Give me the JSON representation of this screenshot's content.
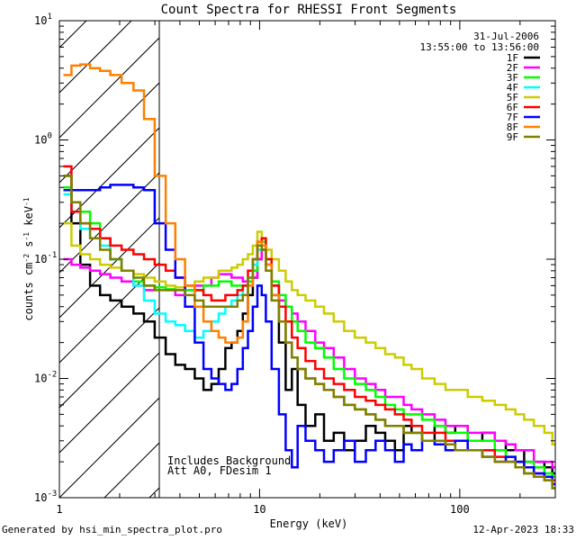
{
  "chart_data": {
    "type": "line",
    "title": "Count Spectra for RHESSI Front Segments",
    "xlabel": "Energy (keV)",
    "ylabel": "counts cm^-2 s^-1 keV^-1",
    "xscale": "log",
    "yscale": "log",
    "xlim": [
      1,
      300
    ],
    "ylim": [
      0.001,
      10
    ],
    "x_ticks": [
      {
        "value": 1,
        "label": "1"
      },
      {
        "value": 10,
        "label": "10"
      },
      {
        "value": 100,
        "label": "100"
      }
    ],
    "y_ticks": [
      {
        "value": 0.001,
        "base": "10",
        "exp": "-3"
      },
      {
        "value": 0.01,
        "base": "10",
        "exp": "-2"
      },
      {
        "value": 0.1,
        "base": "10",
        "exp": "-1"
      },
      {
        "value": 1,
        "base": "10",
        "exp": "0"
      },
      {
        "value": 10,
        "base": "10",
        "exp": "1"
      }
    ],
    "grid": false,
    "hatched_region": {
      "x": [
        1,
        3
      ]
    },
    "date": "31-Jul-2006",
    "time_range": "13:55:00 to 13:56:00",
    "annotations": [
      "Includes Background",
      "Att A0, FDesim 1"
    ],
    "legend_position": "top-right",
    "series": [
      {
        "name": "1F",
        "color": "#000000",
        "x": [
          1.1,
          1.2,
          1.35,
          1.5,
          1.7,
          1.9,
          2.2,
          2.5,
          2.8,
          3.2,
          3.6,
          4.0,
          4.5,
          5.0,
          5.5,
          6.0,
          6.5,
          7.0,
          7.5,
          8.0,
          8.5,
          9.0,
          9.5,
          10.0,
          10.5,
          11.0,
          12,
          13,
          14,
          15,
          16,
          18,
          20,
          22,
          25,
          28,
          32,
          36,
          40,
          45,
          50,
          55,
          60,
          70,
          80,
          90,
          100,
          120,
          140,
          160,
          180,
          200,
          220,
          250,
          280,
          300
        ],
        "y": [
          0.5,
          0.2,
          0.09,
          0.06,
          0.05,
          0.045,
          0.04,
          0.035,
          0.03,
          0.022,
          0.016,
          0.013,
          0.012,
          0.01,
          0.008,
          0.009,
          0.012,
          0.018,
          0.02,
          0.025,
          0.035,
          0.05,
          0.07,
          0.1,
          0.12,
          0.09,
          0.05,
          0.02,
          0.008,
          0.012,
          0.006,
          0.004,
          0.005,
          0.003,
          0.0035,
          0.0025,
          0.003,
          0.004,
          0.0035,
          0.003,
          0.0025,
          0.004,
          0.0035,
          0.003,
          0.004,
          0.0035,
          0.004,
          0.003,
          0.0035,
          0.003,
          0.0025,
          0.0025,
          0.002,
          0.002,
          0.0018,
          0.0016
        ]
      },
      {
        "name": "2F",
        "color": "#ff00ff",
        "x": [
          1.1,
          1.2,
          1.35,
          1.5,
          1.7,
          1.9,
          2.2,
          2.5,
          2.8,
          3.2,
          3.6,
          4.0,
          4.5,
          5.0,
          5.5,
          6.0,
          6.5,
          7.0,
          7.5,
          8.0,
          8.5,
          9.0,
          9.5,
          10.0,
          10.5,
          11.0,
          12,
          13,
          14,
          15,
          16,
          18,
          20,
          22,
          25,
          28,
          32,
          36,
          40,
          45,
          50,
          55,
          60,
          70,
          80,
          90,
          100,
          120,
          140,
          160,
          180,
          200,
          220,
          250,
          280,
          300
        ],
        "y": [
          0.1,
          0.09,
          0.085,
          0.08,
          0.075,
          0.07,
          0.065,
          0.06,
          0.055,
          0.058,
          0.055,
          0.05,
          0.055,
          0.06,
          0.06,
          0.07,
          0.075,
          0.075,
          0.07,
          0.07,
          0.065,
          0.065,
          0.07,
          0.1,
          0.12,
          0.09,
          0.06,
          0.045,
          0.04,
          0.035,
          0.03,
          0.025,
          0.02,
          0.018,
          0.015,
          0.012,
          0.01,
          0.009,
          0.008,
          0.007,
          0.007,
          0.006,
          0.0055,
          0.005,
          0.0045,
          0.004,
          0.004,
          0.0035,
          0.0035,
          0.003,
          0.0028,
          0.0025,
          0.0025,
          0.002,
          0.002,
          0.0018
        ]
      },
      {
        "name": "3F",
        "color": "#00ff00",
        "x": [
          1.1,
          1.2,
          1.35,
          1.5,
          1.7,
          1.9,
          2.2,
          2.5,
          2.8,
          3.2,
          3.6,
          4.0,
          4.5,
          5.0,
          5.5,
          6.0,
          6.5,
          7.0,
          7.5,
          8.0,
          8.5,
          9.0,
          9.5,
          10.0,
          10.5,
          11.0,
          12,
          13,
          14,
          15,
          16,
          18,
          20,
          22,
          25,
          28,
          32,
          36,
          40,
          45,
          50,
          55,
          60,
          70,
          80,
          90,
          100,
          120,
          140,
          160,
          180,
          200,
          220,
          250,
          280,
          300
        ],
        "y": [
          0.4,
          0.3,
          0.25,
          0.2,
          0.15,
          0.1,
          0.08,
          0.065,
          0.06,
          0.058,
          0.056,
          0.055,
          0.055,
          0.055,
          0.06,
          0.06,
          0.065,
          0.065,
          0.06,
          0.06,
          0.06,
          0.065,
          0.08,
          0.12,
          0.14,
          0.1,
          0.065,
          0.05,
          0.04,
          0.03,
          0.025,
          0.02,
          0.018,
          0.015,
          0.012,
          0.01,
          0.009,
          0.008,
          0.007,
          0.006,
          0.0055,
          0.005,
          0.005,
          0.0045,
          0.004,
          0.0035,
          0.0035,
          0.003,
          0.003,
          0.0025,
          0.0022,
          0.002,
          0.002,
          0.0018,
          0.0016,
          0.0015
        ]
      },
      {
        "name": "4F",
        "color": "#00ffff",
        "x": [
          1.1,
          1.2,
          1.35,
          1.5,
          1.7,
          1.9,
          2.2,
          2.5,
          2.8,
          3.2,
          3.6,
          4.0,
          4.5,
          5.0,
          5.5,
          6.0,
          6.5,
          7.0,
          7.5,
          8.0,
          8.5,
          9.0,
          9.5,
          10.0,
          10.5,
          11.0,
          12,
          13,
          14,
          15,
          16,
          18,
          20,
          22,
          25,
          28,
          32,
          36,
          40,
          45,
          50,
          55,
          60,
          70,
          80,
          90,
          100,
          120,
          140,
          160,
          180,
          200,
          220,
          250,
          280,
          300
        ],
        "y": [
          0.35,
          0.25,
          0.18,
          0.15,
          0.13,
          0.1,
          0.08,
          0.06,
          0.045,
          0.035,
          0.03,
          0.028,
          0.025,
          0.022,
          0.025,
          0.03,
          0.035,
          0.04,
          0.045,
          0.05,
          0.06,
          0.07,
          0.09,
          0.12,
          0.13,
          0.09,
          0.05,
          0.03,
          0.02,
          0.015,
          0.012,
          0.01,
          0.009,
          0.008,
          0.007,
          0.006,
          0.0055,
          0.005,
          0.0045,
          0.004,
          0.004,
          0.0035,
          0.0035,
          0.003,
          0.003,
          0.0028,
          0.0025,
          0.0025,
          0.0022,
          0.002,
          0.002,
          0.0018,
          0.0016,
          0.0015,
          0.0014,
          0.0013
        ]
      },
      {
        "name": "5F",
        "color": "#cccc00",
        "x": [
          1.1,
          1.2,
          1.35,
          1.5,
          1.7,
          1.9,
          2.2,
          2.5,
          2.8,
          3.2,
          3.6,
          4.0,
          4.5,
          5.0,
          5.5,
          6.0,
          6.5,
          7.0,
          7.5,
          8.0,
          8.5,
          9.0,
          9.5,
          10.0,
          10.5,
          11.0,
          12,
          13,
          14,
          15,
          16,
          18,
          20,
          22,
          25,
          28,
          32,
          36,
          40,
          45,
          50,
          55,
          60,
          70,
          80,
          90,
          100,
          120,
          140,
          160,
          180,
          200,
          220,
          250,
          280,
          300
        ],
        "y": [
          0.2,
          0.13,
          0.11,
          0.1,
          0.09,
          0.085,
          0.08,
          0.075,
          0.07,
          0.065,
          0.06,
          0.058,
          0.06,
          0.065,
          0.07,
          0.07,
          0.08,
          0.08,
          0.085,
          0.09,
          0.1,
          0.11,
          0.13,
          0.17,
          0.15,
          0.12,
          0.1,
          0.08,
          0.065,
          0.055,
          0.05,
          0.045,
          0.04,
          0.035,
          0.03,
          0.025,
          0.022,
          0.02,
          0.018,
          0.016,
          0.015,
          0.013,
          0.012,
          0.01,
          0.009,
          0.008,
          0.008,
          0.007,
          0.0065,
          0.006,
          0.0055,
          0.005,
          0.0045,
          0.004,
          0.0035,
          0.0028
        ]
      },
      {
        "name": "6F",
        "color": "#ff0000",
        "x": [
          1.1,
          1.2,
          1.35,
          1.5,
          1.7,
          1.9,
          2.2,
          2.5,
          2.8,
          3.2,
          3.6,
          4.0,
          4.5,
          5.0,
          5.5,
          6.0,
          6.5,
          7.0,
          7.5,
          8.0,
          8.5,
          9.0,
          9.5,
          10.0,
          10.5,
          11.0,
          12,
          13,
          14,
          15,
          16,
          18,
          20,
          22,
          25,
          28,
          32,
          36,
          40,
          45,
          50,
          55,
          60,
          70,
          80,
          90,
          100,
          120,
          140,
          160,
          180,
          200,
          220,
          250,
          280,
          300
        ],
        "y": [
          0.6,
          0.25,
          0.2,
          0.18,
          0.15,
          0.13,
          0.12,
          0.11,
          0.1,
          0.09,
          0.08,
          0.07,
          0.06,
          0.055,
          0.05,
          0.045,
          0.045,
          0.05,
          0.05,
          0.055,
          0.06,
          0.08,
          0.1,
          0.14,
          0.15,
          0.1,
          0.06,
          0.04,
          0.03,
          0.022,
          0.018,
          0.014,
          0.012,
          0.01,
          0.009,
          0.008,
          0.007,
          0.0065,
          0.006,
          0.0055,
          0.005,
          0.0045,
          0.004,
          0.0035,
          0.0035,
          0.003,
          0.003,
          0.0025,
          0.0025,
          0.0022,
          0.002,
          0.002,
          0.0018,
          0.0016,
          0.0015,
          0.0014
        ]
      },
      {
        "name": "7F",
        "color": "#0000ff",
        "x": [
          1.1,
          1.2,
          1.35,
          1.5,
          1.7,
          1.9,
          2.2,
          2.5,
          2.8,
          3.2,
          3.6,
          4.0,
          4.5,
          5.0,
          5.5,
          6.0,
          6.5,
          7.0,
          7.5,
          8.0,
          8.5,
          9.0,
          9.5,
          10.0,
          10.5,
          11.0,
          12,
          13,
          14,
          15,
          16,
          18,
          20,
          22,
          25,
          28,
          32,
          36,
          40,
          45,
          50,
          55,
          60,
          70,
          80,
          90,
          100,
          120,
          140,
          160,
          180,
          200,
          220,
          250,
          280,
          300
        ],
        "y": [
          0.38,
          0.38,
          0.38,
          0.38,
          0.4,
          0.42,
          0.42,
          0.4,
          0.38,
          0.2,
          0.12,
          0.07,
          0.04,
          0.02,
          0.012,
          0.01,
          0.009,
          0.008,
          0.009,
          0.012,
          0.018,
          0.025,
          0.04,
          0.06,
          0.05,
          0.03,
          0.012,
          0.005,
          0.0025,
          0.0018,
          0.004,
          0.003,
          0.0025,
          0.002,
          0.0025,
          0.003,
          0.002,
          0.0025,
          0.003,
          0.0025,
          0.002,
          0.0028,
          0.0025,
          0.003,
          0.0028,
          0.0025,
          0.003,
          0.0025,
          0.0022,
          0.002,
          0.0022,
          0.002,
          0.0018,
          0.0016,
          0.0015,
          0.0013
        ]
      },
      {
        "name": "8F",
        "color": "#ff8000",
        "x": [
          1.1,
          1.2,
          1.35,
          1.5,
          1.7,
          1.9,
          2.2,
          2.5,
          2.8,
          3.2,
          3.6,
          4.0,
          4.5,
          5.0,
          5.5,
          6.0,
          6.5,
          7.0,
          7.5,
          8.0,
          8.5,
          9.0,
          9.5,
          10.0,
          10.5,
          11.0,
          12,
          13,
          14,
          15,
          16,
          18,
          20,
          22,
          25,
          28,
          32,
          36,
          40,
          45,
          50,
          55,
          60,
          70,
          80,
          90,
          100,
          120,
          140,
          160,
          180,
          200,
          220,
          250,
          280,
          300
        ],
        "y": [
          3.5,
          4.2,
          4.3,
          4.0,
          3.8,
          3.5,
          3.0,
          2.6,
          1.5,
          0.5,
          0.2,
          0.1,
          0.06,
          0.04,
          0.03,
          0.025,
          0.022,
          0.02,
          0.02,
          0.022,
          0.03,
          0.06,
          0.1,
          0.14,
          0.13,
          0.09,
          0.05,
          0.03,
          0.02,
          0.015,
          0.012,
          0.01,
          0.009,
          0.008,
          0.007,
          0.006,
          0.0055,
          0.005,
          0.0045,
          0.004,
          0.004,
          0.0035,
          0.0035,
          0.003,
          0.003,
          0.0028,
          0.0025,
          0.0025,
          0.0022,
          0.002,
          0.002,
          0.0018,
          0.0016,
          0.0015,
          0.0014,
          0.0012
        ]
      },
      {
        "name": "9F",
        "color": "#808000",
        "x": [
          1.1,
          1.2,
          1.35,
          1.5,
          1.7,
          1.9,
          2.2,
          2.5,
          2.8,
          3.2,
          3.6,
          4.0,
          4.5,
          5.0,
          5.5,
          6.0,
          6.5,
          7.0,
          7.5,
          8.0,
          8.5,
          9.0,
          9.5,
          10.0,
          10.5,
          11.0,
          12,
          13,
          14,
          15,
          16,
          18,
          20,
          22,
          25,
          28,
          32,
          36,
          40,
          45,
          50,
          55,
          60,
          70,
          80,
          90,
          100,
          120,
          140,
          160,
          180,
          200,
          220,
          250,
          280,
          300
        ],
        "y": [
          0.5,
          0.3,
          0.2,
          0.15,
          0.12,
          0.1,
          0.08,
          0.07,
          0.06,
          0.055,
          0.055,
          0.055,
          0.05,
          0.045,
          0.04,
          0.04,
          0.04,
          0.04,
          0.04,
          0.045,
          0.05,
          0.07,
          0.1,
          0.13,
          0.12,
          0.08,
          0.045,
          0.03,
          0.02,
          0.015,
          0.012,
          0.01,
          0.009,
          0.008,
          0.007,
          0.006,
          0.0055,
          0.005,
          0.0045,
          0.004,
          0.004,
          0.0035,
          0.0035,
          0.003,
          0.003,
          0.0028,
          0.0025,
          0.0025,
          0.0022,
          0.002,
          0.002,
          0.0018,
          0.0016,
          0.0015,
          0.0014,
          0.0012
        ]
      }
    ]
  },
  "footer": {
    "generated_by": "Generated by hsi_min_spectra_plot.pro",
    "timestamp": "12-Apr-2023 18:33"
  }
}
